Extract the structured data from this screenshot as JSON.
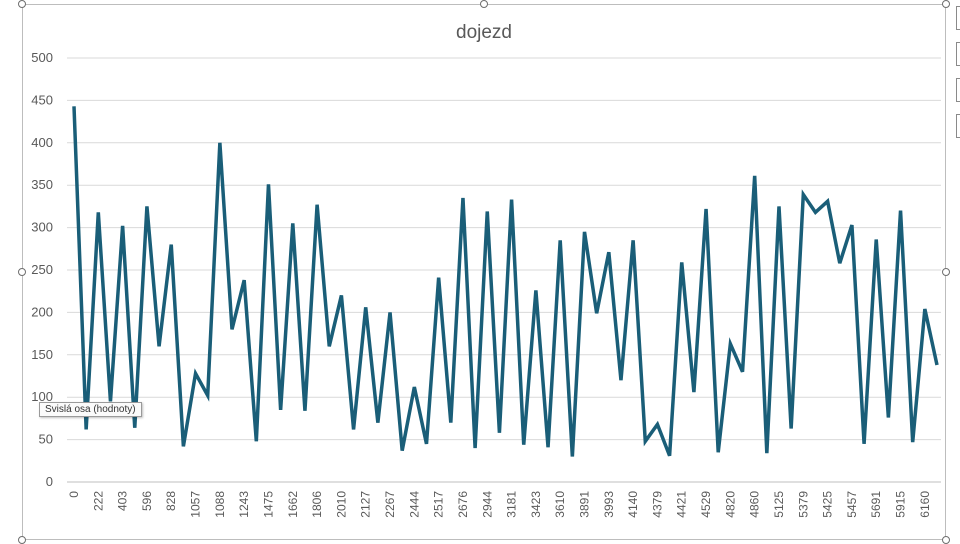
{
  "tooltip": "Svislá osa (hodnoty)",
  "chart_data": {
    "type": "line",
    "title": "dojezd",
    "xlabel": "",
    "ylabel": "",
    "ylim": [
      0,
      500
    ],
    "yticks": [
      0,
      50,
      100,
      150,
      200,
      250,
      300,
      350,
      400,
      450,
      500
    ],
    "grid": true,
    "legend": "none",
    "colors": {
      "line": "#1a5e78",
      "grid": "#d9d9d9",
      "text": "#595959"
    },
    "x_tick_labels": [
      "0",
      "222",
      "403",
      "596",
      "828",
      "1057",
      "1088",
      "1243",
      "1475",
      "1662",
      "1806",
      "2010",
      "2127",
      "2267",
      "2444",
      "2517",
      "2676",
      "2944",
      "3181",
      "3423",
      "3610",
      "3891",
      "3993",
      "4140",
      "4379",
      "4421",
      "4529",
      "4820",
      "4860",
      "5125",
      "5379",
      "5425",
      "5457",
      "5691",
      "5915",
      "6160"
    ],
    "label_every": 2,
    "values": [
      443,
      62,
      318,
      95,
      302,
      64,
      325,
      160,
      280,
      42,
      128,
      102,
      400,
      180,
      238,
      48,
      351,
      85,
      305,
      84,
      327,
      160,
      220,
      62,
      206,
      70,
      200,
      37,
      112,
      45,
      241,
      70,
      335,
      40,
      319,
      58,
      333,
      44,
      226,
      41,
      285,
      30,
      295,
      199,
      271,
      120,
      285,
      48,
      68,
      31,
      259,
      106,
      322,
      35,
      163,
      130,
      361,
      34,
      325,
      63,
      339,
      318,
      331,
      258,
      303,
      45,
      286,
      76,
      320,
      47,
      204,
      138
    ]
  }
}
